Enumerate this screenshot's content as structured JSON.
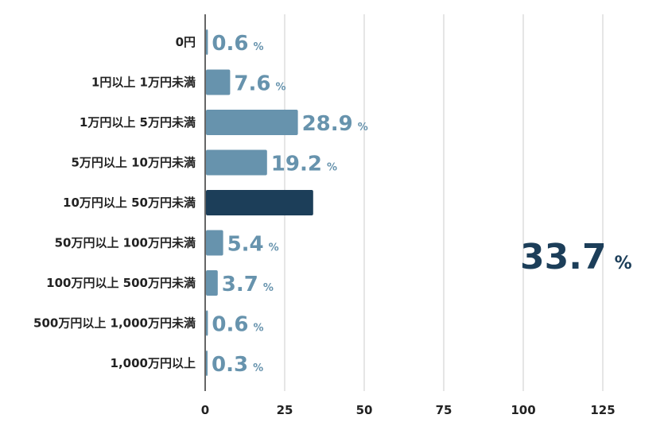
{
  "chart_data": {
    "type": "bar",
    "orientation": "horizontal",
    "categories": [
      "0円",
      "1円以上 1万円未満",
      "1万円以上 5万円未満",
      "5万円以上 10万円未満",
      "10万円以上 50万円未満",
      "50万円以上 100万円未満",
      "100万円以上 500万円未満",
      "500万円以上 1,000万円未満",
      "1,000万円以上"
    ],
    "values": [
      0.6,
      7.6,
      28.9,
      19.2,
      33.7,
      5.4,
      3.7,
      0.6,
      0.3
    ],
    "value_labels": [
      "0.6",
      "7.6",
      "28.9",
      "19.2",
      "33.7",
      "5.4",
      "3.7",
      "0.6",
      "0.3"
    ],
    "value_unit": "%",
    "highlight_index": 4,
    "xlim": [
      0,
      125
    ],
    "xticks": [
      0,
      25,
      50,
      75,
      100,
      125
    ],
    "title": "",
    "xlabel": "",
    "ylabel": "",
    "grid": "vertical",
    "colors": {
      "bar": "#6793ad",
      "highlight_bar": "#1c3e59",
      "label": "#6793ad",
      "highlight_label": "#1c3e59",
      "grid": "#d4d4d4",
      "axis": "#333333"
    }
  }
}
